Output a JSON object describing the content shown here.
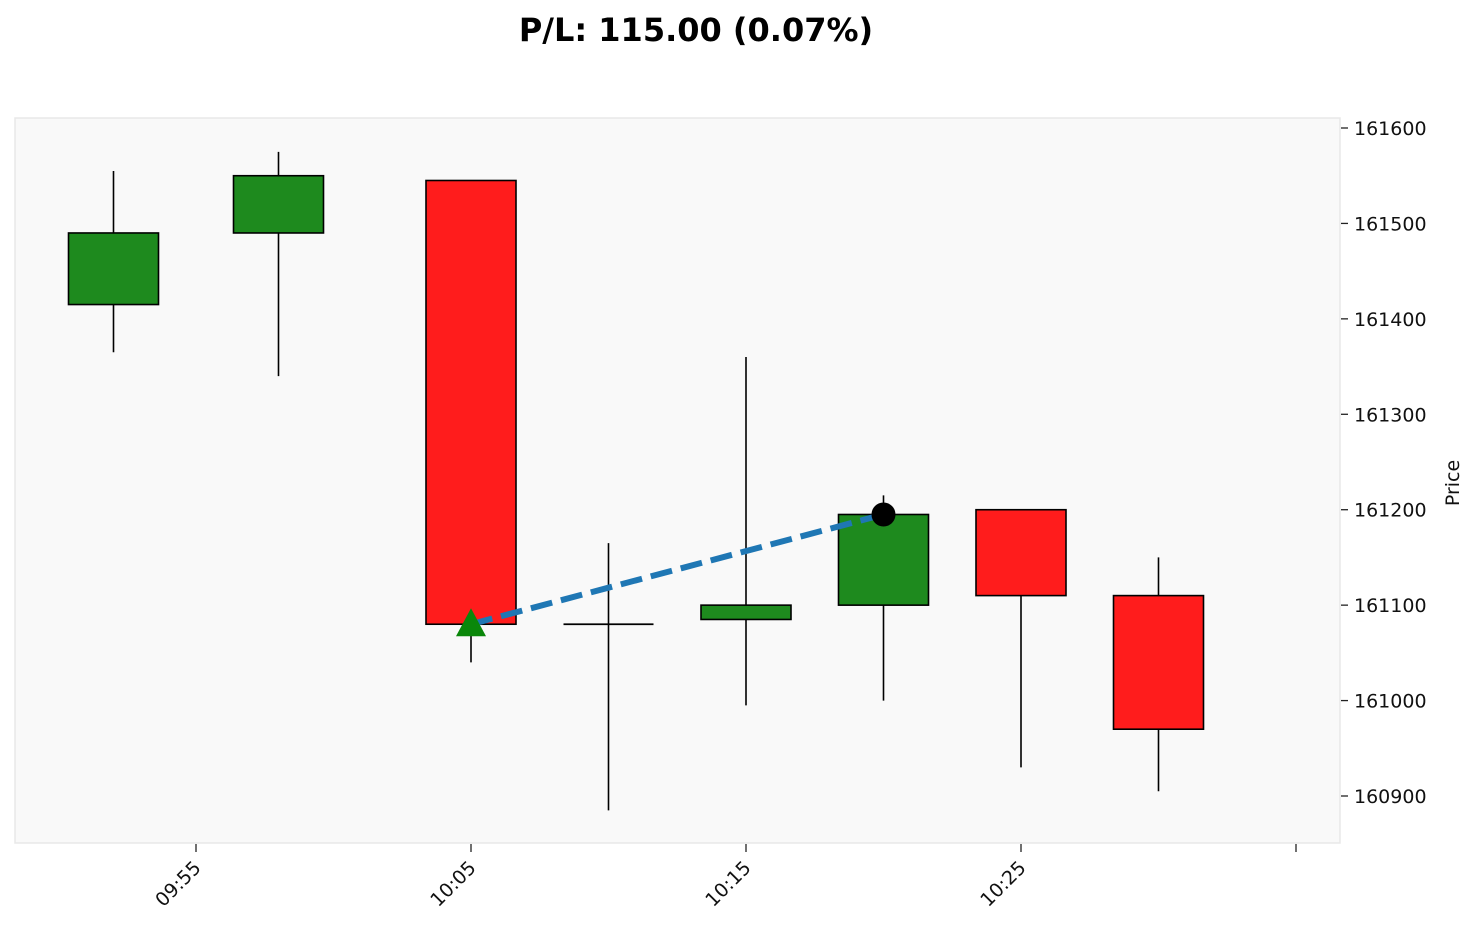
{
  "title": "P/L: 115.00 (0.07%)",
  "chart_data": {
    "type": "candlestick",
    "title": "P/L: 115.00 (0.07%)",
    "ylabel": "Price",
    "xlabel": "",
    "ylim": [
      160850,
      161610
    ],
    "y_ticks": [
      160900,
      161000,
      161100,
      161200,
      161300,
      161400,
      161500,
      161600
    ],
    "x_tick_labels": [
      "09:55",
      "10:05",
      "10:15",
      "10:25",
      ""
    ],
    "candles": [
      {
        "time": "09:52",
        "open": 161415,
        "high": 161555,
        "low": 161365,
        "close": 161490
      },
      {
        "time": "09:58",
        "open": 161490,
        "high": 161575,
        "low": 161340,
        "close": 161550
      },
      {
        "time": "10:05",
        "open": 161545,
        "high": 161545,
        "low": 161040,
        "close": 161080
      },
      {
        "time": "10:10",
        "open": 161080,
        "high": 161165,
        "low": 160885,
        "close": 161080
      },
      {
        "time": "10:15",
        "open": 161085,
        "high": 161360,
        "low": 160995,
        "close": 161100
      },
      {
        "time": "10:20",
        "open": 161100,
        "high": 161215,
        "low": 161000,
        "close": 161195
      },
      {
        "time": "10:25",
        "open": 161200,
        "high": 161200,
        "low": 160930,
        "close": 161110
      },
      {
        "time": "10:30",
        "open": 161110,
        "high": 161150,
        "low": 160905,
        "close": 160970
      }
    ],
    "trade": {
      "entry": {
        "time": "10:05",
        "price": 161080,
        "marker": "triangle-up"
      },
      "exit": {
        "time": "10:20",
        "price": 161195,
        "marker": "circle"
      }
    },
    "grid": false,
    "colors": {
      "up": "#1e8a1e",
      "down": "#ff1c1c",
      "trade_line": "#1f77b4",
      "entry_marker": "#0a870a",
      "exit_marker": "#000000",
      "plot_background": "#f9f9f9",
      "plot_border": "#e8e8e8"
    }
  }
}
